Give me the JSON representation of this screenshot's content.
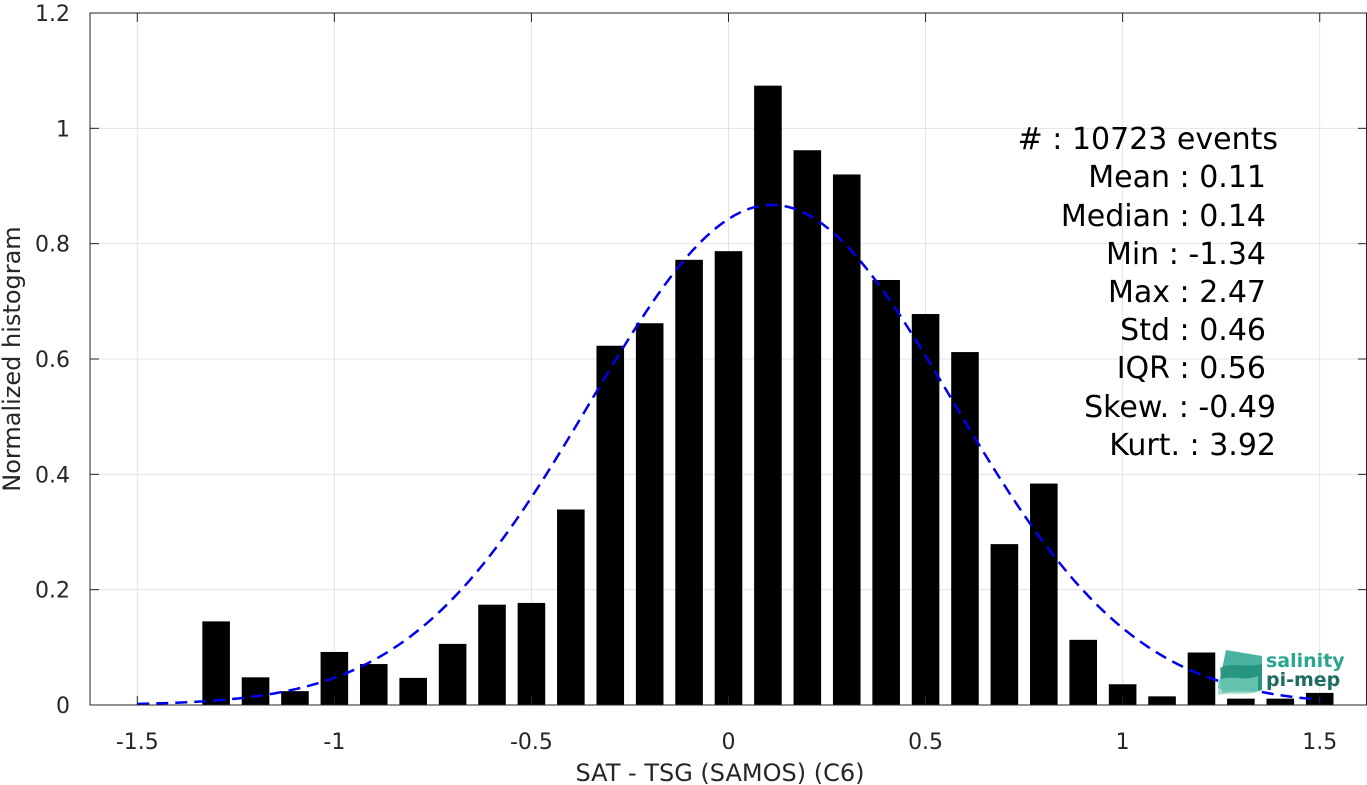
{
  "chart_data": {
    "type": "bar",
    "xlabel": "SAT - TSG (SAMOS) (C6)",
    "ylabel": "Normalized histogram",
    "xlim": [
      -1.62,
      1.62
    ],
    "ylim": [
      0,
      1.2
    ],
    "xticks": [
      -1.5,
      -1,
      -0.5,
      0,
      0.5,
      1,
      1.5
    ],
    "xtick_labels": [
      "-1.5",
      "-1",
      "-0.5",
      "0",
      "0.5",
      "1",
      "1.5"
    ],
    "yticks": [
      0,
      0.2,
      0.4,
      0.6,
      0.8,
      1,
      1.2
    ],
    "ytick_labels": [
      "0",
      "0.2",
      "0.4",
      "0.6",
      "0.8",
      "1",
      "1.2"
    ],
    "grid": true,
    "bar_width": 0.07,
    "bars": [
      {
        "x": -1.3,
        "value": 0.145
      },
      {
        "x": -1.2,
        "value": 0.048
      },
      {
        "x": -1.1,
        "value": 0.024
      },
      {
        "x": -1.0,
        "value": 0.092
      },
      {
        "x": -0.9,
        "value": 0.071
      },
      {
        "x": -0.8,
        "value": 0.047
      },
      {
        "x": -0.7,
        "value": 0.106
      },
      {
        "x": -0.6,
        "value": 0.174
      },
      {
        "x": -0.5,
        "value": 0.177
      },
      {
        "x": -0.4,
        "value": 0.339
      },
      {
        "x": -0.3,
        "value": 0.623
      },
      {
        "x": -0.2,
        "value": 0.662
      },
      {
        "x": -0.1,
        "value": 0.772
      },
      {
        "x": 0.0,
        "value": 0.787
      },
      {
        "x": 0.1,
        "value": 1.074
      },
      {
        "x": 0.2,
        "value": 0.962
      },
      {
        "x": 0.3,
        "value": 0.92
      },
      {
        "x": 0.4,
        "value": 0.737
      },
      {
        "x": 0.5,
        "value": 0.678
      },
      {
        "x": 0.6,
        "value": 0.612
      },
      {
        "x": 0.7,
        "value": 0.279
      },
      {
        "x": 0.8,
        "value": 0.384
      },
      {
        "x": 0.9,
        "value": 0.113
      },
      {
        "x": 1.0,
        "value": 0.036
      },
      {
        "x": 1.1,
        "value": 0.015
      },
      {
        "x": 1.2,
        "value": 0.091
      },
      {
        "x": 1.3,
        "value": 0.011
      },
      {
        "x": 1.4,
        "value": 0.011
      },
      {
        "x": 1.5,
        "value": 0.021
      }
    ],
    "fit_curve": {
      "style": "dashed",
      "color": "#0000ee",
      "mean": 0.11,
      "std": 0.46,
      "x_range": [
        -1.5,
        1.5
      ]
    },
    "bar_color": "#000000"
  },
  "stats": [
    "#  : 10723 events",
    "Mean : 0.11",
    "Median : 0.14",
    "Min : -1.34",
    "Max : 2.47",
    "Std : 0.46",
    "IQR : 0.56",
    "Skew. : -0.49",
    "Kurt. : 3.92"
  ],
  "logo": {
    "line1": "salinity",
    "line2": "pi-mep",
    "color1": "#2aa58f",
    "color2": "#1d6e60"
  }
}
